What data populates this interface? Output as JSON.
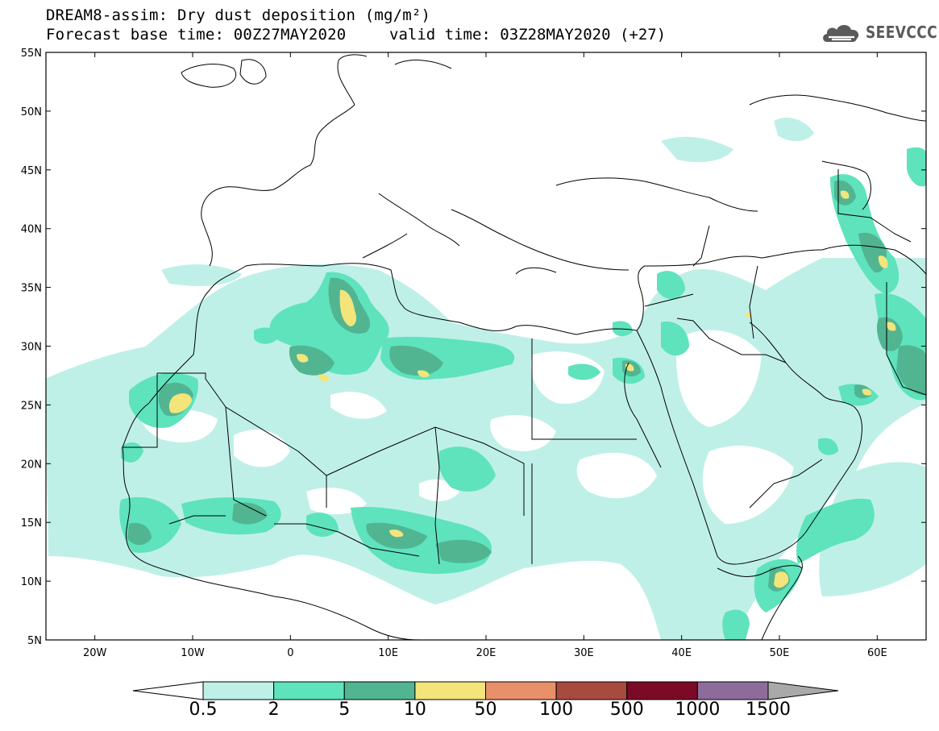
{
  "header": {
    "title_line1": "DREAM8-assim: Dry dust deposition (mg/m²)",
    "title_line2a": "Forecast base time: 00Z27MAY2020",
    "title_line2b": "valid time: 03Z28MAY2020 (+27)",
    "logo_text": "SEEVCCC",
    "logo_icon": "cloud-logo-icon"
  },
  "map": {
    "lon_range": [
      -25,
      65
    ],
    "lat_range": [
      5,
      55
    ],
    "lat_ticks": [
      "55N",
      "50N",
      "45N",
      "40N",
      "35N",
      "30N",
      "25N",
      "20N",
      "15N",
      "10N",
      "5N"
    ],
    "lon_ticks": [
      "20W",
      "10W",
      "0",
      "10E",
      "20E",
      "30E",
      "40E",
      "50E",
      "60E"
    ]
  },
  "colorbar": {
    "labels": [
      "0.5",
      "2",
      "5",
      "10",
      "50",
      "100",
      "500",
      "1000",
      "1500"
    ],
    "colors": [
      "#ffffff",
      "#bff0e8",
      "#5ee3bd",
      "#52b592",
      "#f3e57a",
      "#e8906a",
      "#a94a3f",
      "#7b0a26",
      "#8d6c9c",
      "#a9a9a9"
    ]
  }
}
